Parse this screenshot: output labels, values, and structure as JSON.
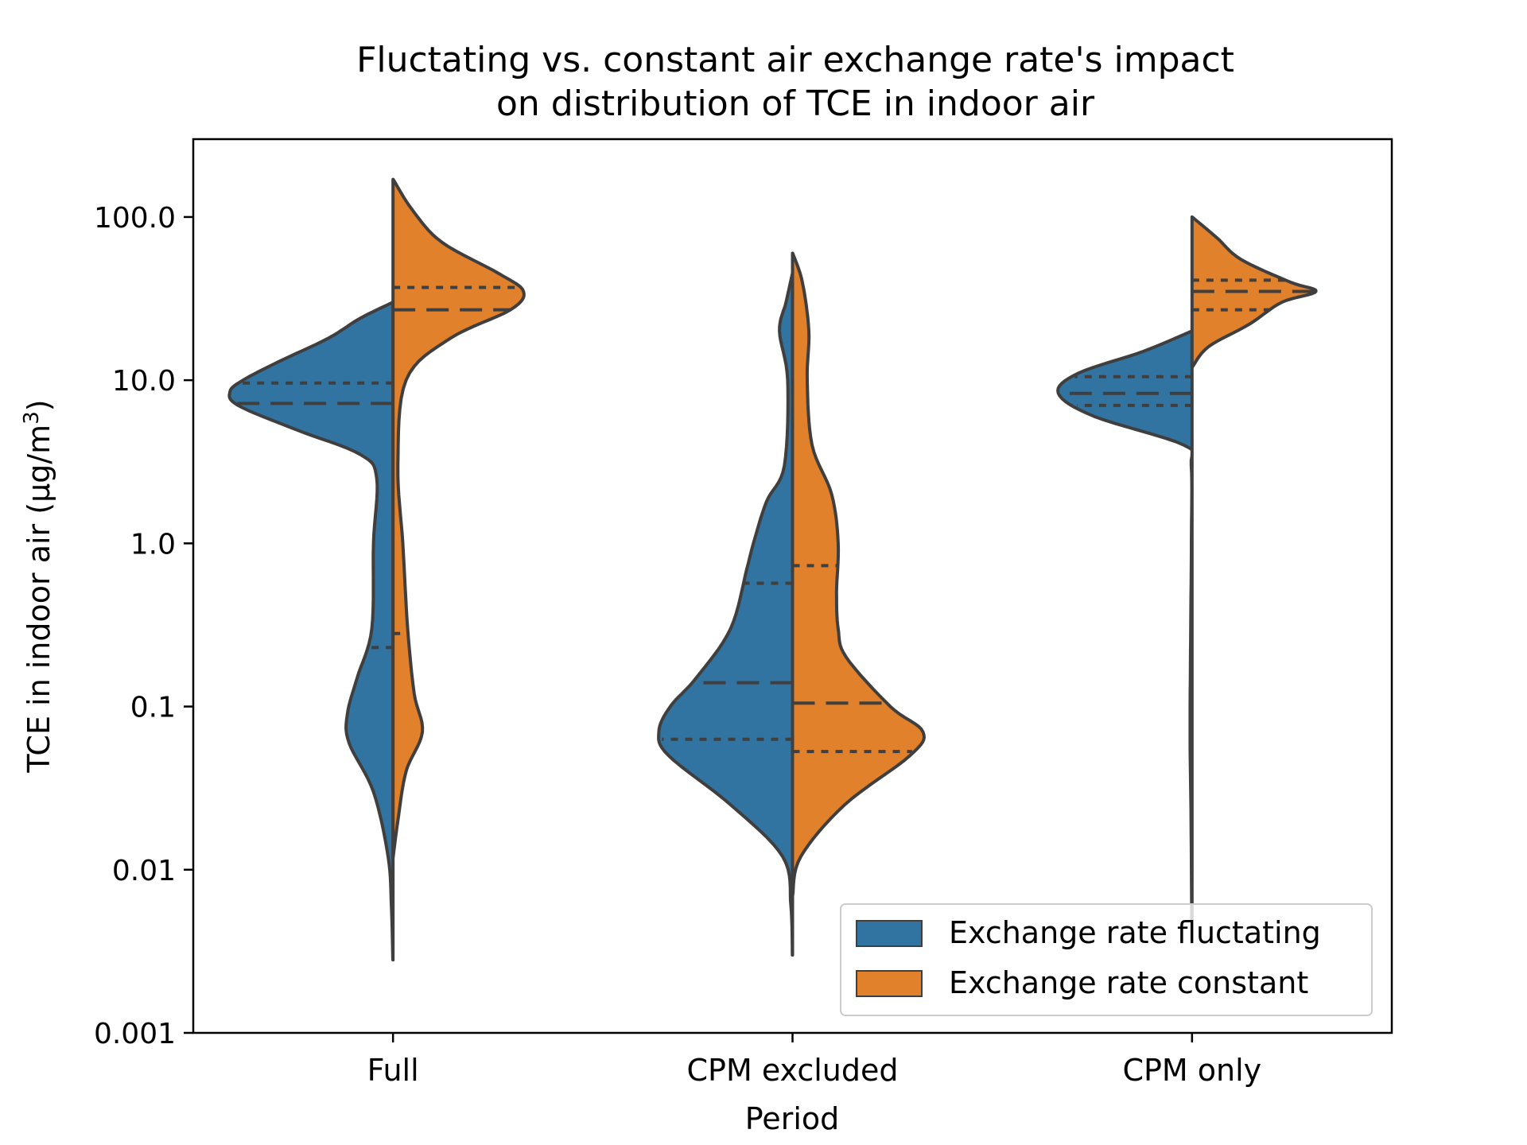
{
  "chart_data": {
    "type": "violin",
    "title_lines": [
      "Fluctating vs. constant air exchange rate's impact",
      "on distribution of TCE in indoor air"
    ],
    "xlabel": "Period",
    "ylabel_main": "TCE in indoor air (μg/m",
    "ylabel_sup": "3",
    "ylabel_close": ")",
    "yscale": "log",
    "ylim": [
      0.001,
      300
    ],
    "yticks": [
      0.001,
      0.01,
      0.1,
      1.0,
      10.0,
      100.0
    ],
    "ytick_labels": [
      "0.001",
      "0.01",
      "0.1",
      "1.0",
      "10.0",
      "100.0"
    ],
    "categories": [
      "Full",
      "CPM excluded",
      "CPM only"
    ],
    "legend": {
      "position": "lower right",
      "entries": [
        "Exchange rate fluctating",
        "Exchange rate constant"
      ]
    },
    "colors": {
      "fluctating": "#3274a1",
      "constant": "#e1812c",
      "edge": "#3f3f3f"
    },
    "series": [
      {
        "name": "Exchange rate fluctating",
        "violins": [
          {
            "category": "Full",
            "range": [
              0.0028,
              30
            ],
            "quartiles": [
              0.23,
              7.2,
              9.6
            ],
            "density": [
              [
                0.0028,
                0.001
              ],
              [
                0.006,
                0.01
              ],
              [
                0.012,
                0.03
              ],
              [
                0.03,
                0.12
              ],
              [
                0.06,
                0.27
              ],
              [
                0.09,
                0.28
              ],
              [
                0.15,
                0.22
              ],
              [
                0.3,
                0.13
              ],
              [
                1,
                0.12
              ],
              [
                2.5,
                0.1
              ],
              [
                3.5,
                0.2
              ],
              [
                5,
                0.6
              ],
              [
                7,
                0.95
              ],
              [
                8.5,
                1.0
              ],
              [
                10,
                0.92
              ],
              [
                13,
                0.7
              ],
              [
                18,
                0.4
              ],
              [
                24,
                0.2
              ],
              [
                30,
                0.001
              ]
            ]
          },
          {
            "category": "CPM excluded",
            "range": [
              0.003,
              45
            ],
            "quartiles": [
              0.063,
              0.14,
              0.57
            ],
            "density": [
              [
                0.003,
                0.001
              ],
              [
                0.006,
                0.01
              ],
              [
                0.012,
                0.06
              ],
              [
                0.025,
                0.38
              ],
              [
                0.05,
                0.76
              ],
              [
                0.07,
                0.82
              ],
              [
                0.1,
                0.75
              ],
              [
                0.15,
                0.59
              ],
              [
                0.3,
                0.38
              ],
              [
                0.7,
                0.28
              ],
              [
                1,
                0.24
              ],
              [
                1.8,
                0.16
              ],
              [
                3,
                0.05
              ],
              [
                10,
                0.03
              ],
              [
                20,
                0.08
              ],
              [
                30,
                0.04
              ],
              [
                45,
                0.001
              ]
            ]
          },
          {
            "category": "CPM only",
            "range": [
              0.005,
              20
            ],
            "quartiles": [
              7.0,
              8.3,
              10.5
            ],
            "density": [
              [
                0.005,
                0.002
              ],
              [
                0.02,
                0.006
              ],
              [
                0.07,
                0.012
              ],
              [
                0.3,
                0.008
              ],
              [
                1,
                0.004
              ],
              [
                3,
                0.005
              ],
              [
                4,
                0.05
              ],
              [
                6,
                0.6
              ],
              [
                8.3,
                0.82
              ],
              [
                11,
                0.7
              ],
              [
                15,
                0.3
              ],
              [
                20,
                0.001
              ]
            ]
          }
        ]
      },
      {
        "name": "Exchange rate constant",
        "violins": [
          {
            "category": "Full",
            "range": [
              0.012,
              170
            ],
            "quartiles": [
              0.28,
              27,
              37
            ],
            "density": [
              [
                0.012,
                0.001
              ],
              [
                0.02,
                0.03
              ],
              [
                0.04,
                0.08
              ],
              [
                0.07,
                0.18
              ],
              [
                0.12,
                0.13
              ],
              [
                0.3,
                0.09
              ],
              [
                1,
                0.06
              ],
              [
                3,
                0.03
              ],
              [
                10,
                0.08
              ],
              [
                18,
                0.35
              ],
              [
                27,
                0.72
              ],
              [
                35,
                0.8
              ],
              [
                45,
                0.65
              ],
              [
                70,
                0.3
              ],
              [
                110,
                0.12
              ],
              [
                170,
                0.001
              ]
            ]
          },
          {
            "category": "CPM excluded",
            "range": [
              0.007,
              60
            ],
            "quartiles": [
              0.053,
              0.105,
              0.73
            ],
            "density": [
              [
                0.007,
                0.001
              ],
              [
                0.012,
                0.05
              ],
              [
                0.025,
                0.32
              ],
              [
                0.05,
                0.72
              ],
              [
                0.07,
                0.8
              ],
              [
                0.1,
                0.6
              ],
              [
                0.2,
                0.33
              ],
              [
                0.3,
                0.28
              ],
              [
                0.5,
                0.27
              ],
              [
                1,
                0.28
              ],
              [
                2,
                0.24
              ],
              [
                4,
                0.12
              ],
              [
                10,
                0.09
              ],
              [
                20,
                0.1
              ],
              [
                40,
                0.06
              ],
              [
                60,
                0.001
              ]
            ]
          },
          {
            "category": "CPM only",
            "range": [
              12,
              100
            ],
            "quartiles": [
              27,
              35,
              41
            ],
            "density": [
              [
                12,
                0.001
              ],
              [
                16,
                0.1
              ],
              [
                22,
                0.35
              ],
              [
                30,
                0.55
              ],
              [
                35,
                0.76
              ],
              [
                40,
                0.6
              ],
              [
                55,
                0.3
              ],
              [
                75,
                0.15
              ],
              [
                100,
                0.001
              ]
            ]
          }
        ]
      }
    ]
  }
}
